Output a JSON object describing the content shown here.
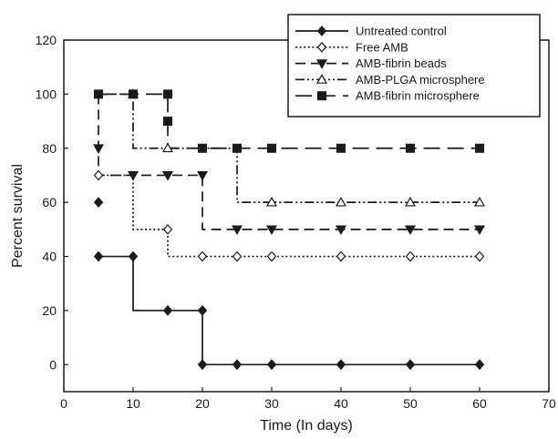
{
  "chart_data": {
    "type": "line",
    "title": "",
    "xlabel": "Time (In days)",
    "ylabel": "Percent survival",
    "xlim": [
      0,
      70
    ],
    "ylim": [
      -10,
      120
    ],
    "xticks": [
      0,
      10,
      20,
      30,
      40,
      50,
      60,
      70
    ],
    "yticks": [
      0,
      20,
      40,
      60,
      80,
      100,
      120
    ],
    "grid": false,
    "legend_position": "top-right",
    "step": true,
    "series": [
      {
        "name": "Untreated control",
        "marker": "diamond-filled",
        "dash": "solid",
        "steps": [
          [
            5,
            40
          ],
          [
            10,
            20
          ],
          [
            20,
            0
          ],
          [
            60,
            0
          ]
        ],
        "markers": [
          [
            5,
            60
          ],
          [
            5,
            40
          ],
          [
            10,
            40
          ],
          [
            15,
            20
          ],
          [
            20,
            20
          ],
          [
            20,
            0
          ],
          [
            25,
            0
          ],
          [
            30,
            0
          ],
          [
            40,
            0
          ],
          [
            50,
            0
          ],
          [
            60,
            0
          ]
        ]
      },
      {
        "name": "Free AMB",
        "marker": "diamond-open",
        "dash": "dotted",
        "steps": [
          [
            5,
            70
          ],
          [
            10,
            50
          ],
          [
            15,
            40
          ],
          [
            60,
            40
          ]
        ],
        "markers": [
          [
            5,
            70
          ],
          [
            15,
            50
          ],
          [
            20,
            40
          ],
          [
            25,
            40
          ],
          [
            30,
            40
          ],
          [
            40,
            40
          ],
          [
            50,
            40
          ],
          [
            60,
            40
          ]
        ]
      },
      {
        "name": "AMB-fibrin beads",
        "marker": "triangle-down-filled",
        "dash": "long-dash",
        "steps": [
          [
            5,
            100
          ],
          [
            5,
            70
          ],
          [
            20,
            50
          ],
          [
            60,
            50
          ]
        ],
        "markers": [
          [
            5,
            80
          ],
          [
            10,
            70
          ],
          [
            15,
            70
          ],
          [
            20,
            70
          ],
          [
            25,
            50
          ],
          [
            30,
            50
          ],
          [
            40,
            50
          ],
          [
            50,
            50
          ],
          [
            60,
            50
          ]
        ]
      },
      {
        "name": "AMB-PLGA microsphere",
        "marker": "triangle-up-open",
        "dash": "dash-dot-dot",
        "steps": [
          [
            5,
            100
          ],
          [
            10,
            80
          ],
          [
            25,
            60
          ],
          [
            60,
            60
          ]
        ],
        "markers": [
          [
            10,
            100
          ],
          [
            15,
            80
          ],
          [
            30,
            60
          ],
          [
            40,
            60
          ],
          [
            50,
            60
          ],
          [
            60,
            60
          ]
        ]
      },
      {
        "name": "AMB-fibrin microsphere",
        "marker": "square-filled",
        "dash": "wide-dash",
        "steps": [
          [
            5,
            100
          ],
          [
            15,
            80
          ],
          [
            60,
            80
          ]
        ],
        "markers": [
          [
            5,
            100
          ],
          [
            10,
            100
          ],
          [
            15,
            100
          ],
          [
            15,
            90
          ],
          [
            20,
            80
          ],
          [
            25,
            80
          ],
          [
            30,
            80
          ],
          [
            40,
            80
          ],
          [
            50,
            80
          ],
          [
            60,
            80
          ]
        ]
      }
    ]
  }
}
